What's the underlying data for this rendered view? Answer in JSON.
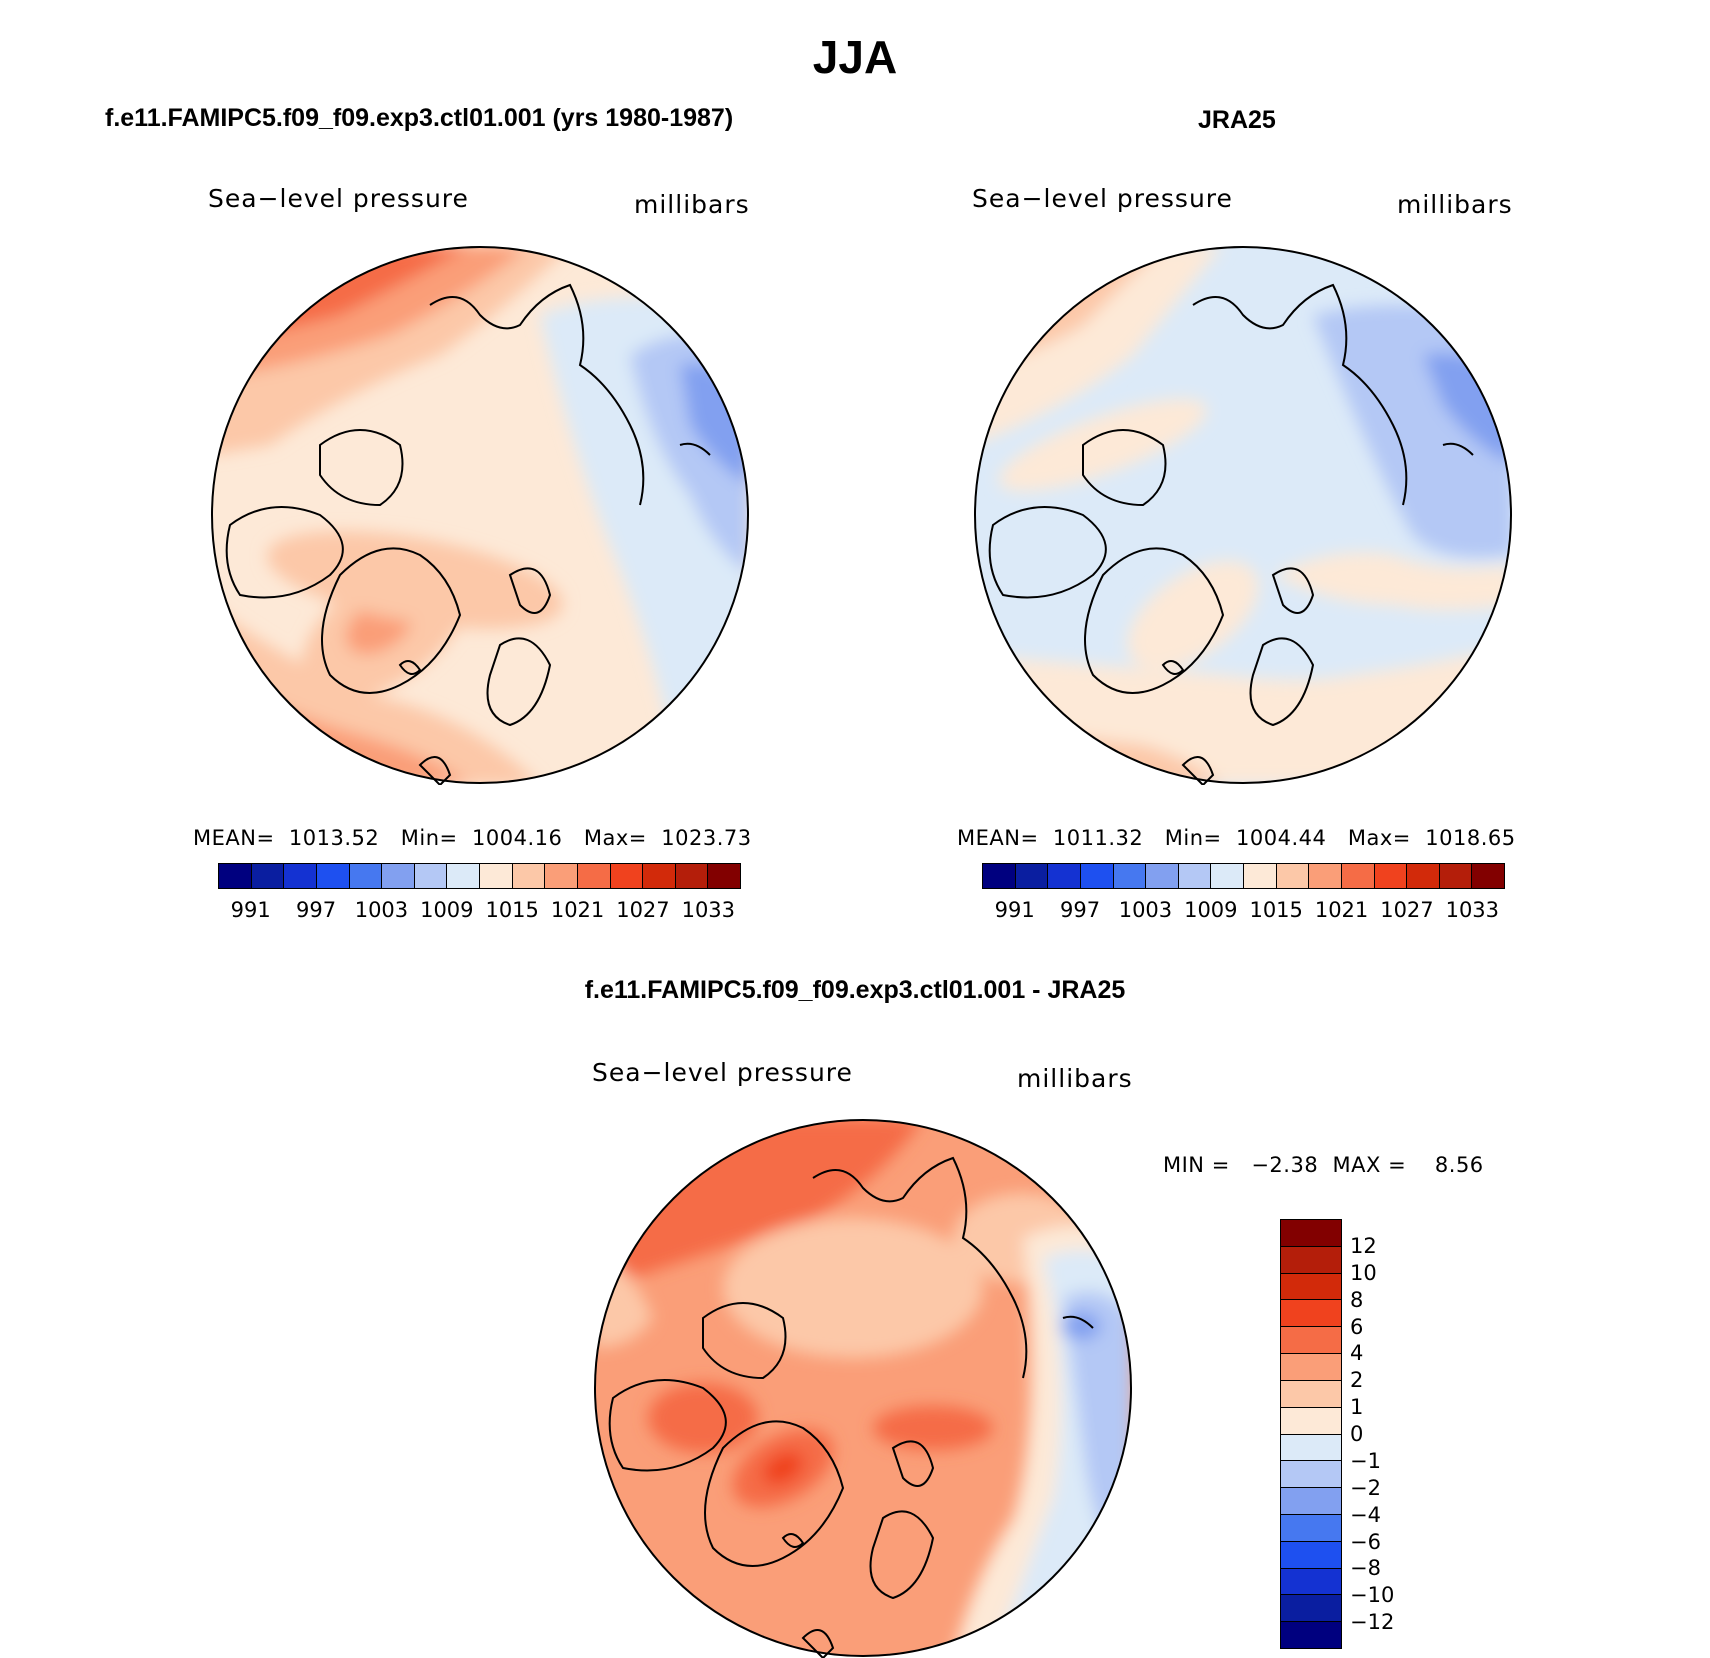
{
  "title": "JJA",
  "panels": {
    "model": {
      "title": "f.e11.FAMIPC5.f09_f09.exp3.ctl01.001 (yrs 1980-1987)",
      "variable": "Sea−level pressure",
      "units": "millibars",
      "stats": {
        "mean_label": "MEAN=",
        "mean": "1013.52",
        "min_label": "Min=",
        "min": "1004.16",
        "max_label": "Max=",
        "max": "1023.73"
      }
    },
    "obs": {
      "title": "JRA25",
      "variable": "Sea−level pressure",
      "units": "millibars",
      "stats": {
        "mean_label": "MEAN=",
        "mean": "1011.32",
        "min_label": "Min=",
        "min": "1004.44",
        "max_label": "Max=",
        "max": "1018.65"
      }
    },
    "diff": {
      "title": "f.e11.FAMIPC5.f09_f09.exp3.ctl01.001 - JRA25",
      "variable": "Sea−level pressure",
      "units": "millibars",
      "stats": {
        "min_label": "MIN =",
        "min": "−2.38",
        "max_label": "MAX =",
        "max": "8.56"
      }
    }
  },
  "colorbar_abs": {
    "colors": [
      "#00007f",
      "#0a1ea0",
      "#1432d2",
      "#1e50f0",
      "#4678f0",
      "#82a0f0",
      "#b4c8f5",
      "#dceaf8",
      "#fde9d7",
      "#fcc8a8",
      "#fa9e78",
      "#f56c46",
      "#f0421e",
      "#d22a0a",
      "#b41e0a",
      "#820000"
    ],
    "ticks": [
      "991",
      "997",
      "1003",
      "1009",
      "1015",
      "1021",
      "1027",
      "1033"
    ]
  },
  "colorbar_diff": {
    "colors_top_to_bottom": [
      "#820000",
      "#b41e0a",
      "#d22a0a",
      "#f0421e",
      "#f56c46",
      "#fa9e78",
      "#fcc8a8",
      "#fde9d7",
      "#dceaf8",
      "#b4c8f5",
      "#82a0f0",
      "#4678f0",
      "#1e50f0",
      "#1432d2",
      "#0a1ea0",
      "#00007f"
    ],
    "ticks": [
      "12",
      "10",
      "8",
      "6",
      "4",
      "2",
      "1",
      "0",
      "−1",
      "−2",
      "−4",
      "−6",
      "−8",
      "−10",
      "−12"
    ]
  }
}
